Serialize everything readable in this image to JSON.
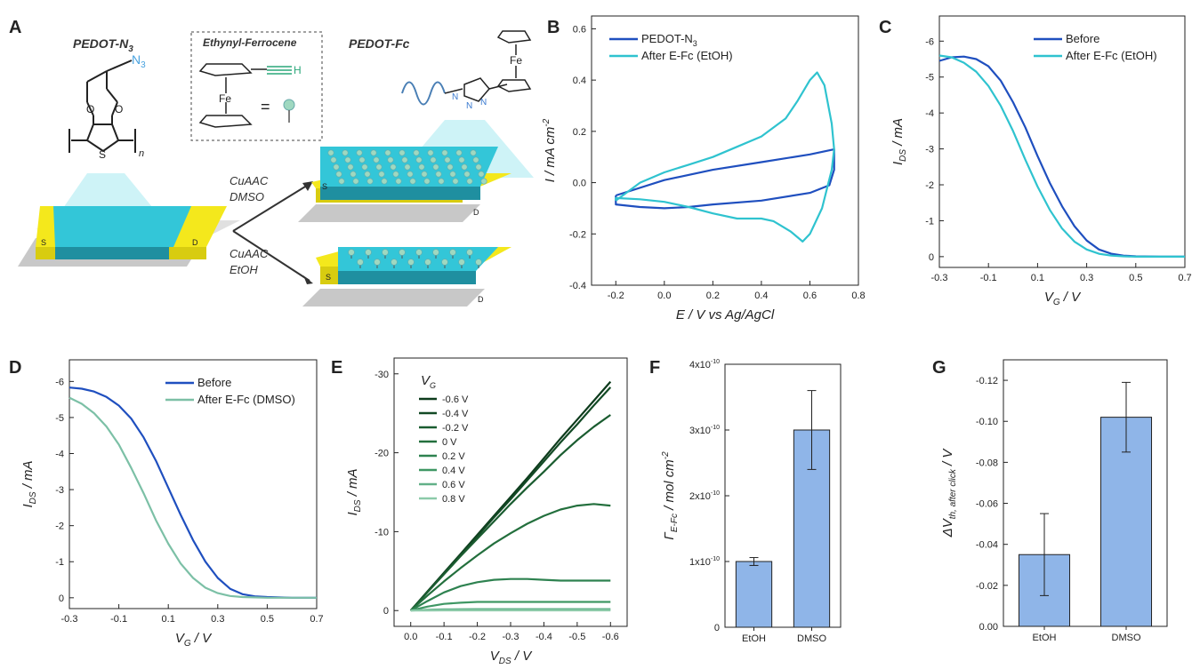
{
  "schematic": {
    "letter": "A",
    "left_title": "PEDOT-N",
    "left_title_sub": "3",
    "right_title": "PEDOT-Fc",
    "box_title": "Ethynyl-Ferrocene",
    "azide": "N",
    "azide_sub": "3",
    "sulfur": "S",
    "iron": "Fe",
    "equals": "=",
    "alkyne_h": "H",
    "n_sub": "n",
    "route_top": [
      "CuAAC",
      "DMSO"
    ],
    "route_bottom": [
      "CuAAC",
      "EtOH"
    ],
    "source": "S",
    "drain": "D",
    "colors": {
      "film": "#33c6d8",
      "contact": "#f4e81c",
      "substrate": "#c8c8c8",
      "fc_ball": "#9fd8c0"
    }
  },
  "colors": {
    "dark_blue": "#1f4fbf",
    "cyan": "#2fc3cf",
    "teal_light": "#7cc0a6",
    "bar_fill": "#8fb5e8"
  },
  "chart_data": [
    {
      "id": "B",
      "type": "line",
      "xlabel": "E / V vs Ag/AgCl",
      "ylabel": "I / mA cm",
      "ylabel_sup": "-2",
      "xlim": [
        -0.3,
        0.8
      ],
      "ylim": [
        -0.4,
        0.65
      ],
      "xticks": [
        -0.2,
        0.0,
        0.2,
        0.4,
        0.6,
        0.8
      ],
      "xtick_labels": [
        "-0.2",
        "0.0",
        "0.2",
        "0.4",
        "0.6",
        "0.8"
      ],
      "yticks": [
        -0.4,
        -0.2,
        0.0,
        0.2,
        0.4,
        0.6
      ],
      "ytick_labels": [
        "-0.4",
        "-0.2",
        "0.0",
        "0.2",
        "0.4",
        "0.6"
      ],
      "legend_pos": "top-left",
      "series": [
        {
          "name": "PEDOT-N",
          "name_sub": "3",
          "color": "#1f4fbf",
          "x": [
            -0.2,
            0.0,
            0.2,
            0.4,
            0.6,
            0.7,
            0.7,
            0.68,
            0.6,
            0.4,
            0.2,
            0.1,
            0.0,
            -0.1,
            -0.2,
            -0.2
          ],
          "y": [
            -0.05,
            0.01,
            0.05,
            0.08,
            0.11,
            0.13,
            0.05,
            -0.01,
            -0.04,
            -0.07,
            -0.085,
            -0.095,
            -0.1,
            -0.095,
            -0.085,
            -0.05
          ]
        },
        {
          "name": "After E-Fc (EtOH)",
          "color": "#2fc3cf",
          "x": [
            -0.2,
            -0.1,
            0.0,
            0.1,
            0.2,
            0.3,
            0.4,
            0.5,
            0.55,
            0.6,
            0.63,
            0.66,
            0.69,
            0.7,
            0.69,
            0.65,
            0.6,
            0.57,
            0.52,
            0.45,
            0.4,
            0.3,
            0.2,
            0.1,
            0.0,
            -0.1,
            -0.2,
            -0.2
          ],
          "y": [
            -0.07,
            0.0,
            0.04,
            0.07,
            0.1,
            0.14,
            0.18,
            0.25,
            0.32,
            0.4,
            0.43,
            0.38,
            0.23,
            0.13,
            0.05,
            -0.1,
            -0.2,
            -0.23,
            -0.19,
            -0.15,
            -0.14,
            -0.14,
            -0.12,
            -0.095,
            -0.075,
            -0.065,
            -0.06,
            -0.07
          ]
        }
      ]
    },
    {
      "id": "C",
      "type": "line",
      "xlabel": "V",
      "xlabel_sub": "G",
      "xlabel_tail": " / V",
      "ylabel": "I",
      "ylabel_sub": "DS",
      "ylabel_tail": " / mA",
      "xlim": [
        -0.3,
        0.7
      ],
      "ylim": [
        0.3,
        -6.7
      ],
      "xticks": [
        -0.3,
        -0.1,
        0.1,
        0.3,
        0.5,
        0.7
      ],
      "xtick_labels": [
        "-0.3",
        "-0.1",
        "0.1",
        "0.3",
        "0.5",
        "0.7"
      ],
      "yticks": [
        0,
        -1,
        -2,
        -3,
        -4,
        -5,
        -6
      ],
      "ytick_labels": [
        "0",
        "-1",
        "-2",
        "-3",
        "-4",
        "-5",
        "-6"
      ],
      "legend_pos": "top-right",
      "series": [
        {
          "name": "Before",
          "color": "#1f4fbf",
          "x": [
            -0.3,
            -0.25,
            -0.2,
            -0.15,
            -0.1,
            -0.05,
            0.0,
            0.05,
            0.1,
            0.15,
            0.2,
            0.25,
            0.3,
            0.35,
            0.4,
            0.45,
            0.5,
            0.6,
            0.7
          ],
          "y": [
            -5.45,
            -5.55,
            -5.57,
            -5.5,
            -5.3,
            -4.9,
            -4.3,
            -3.6,
            -2.8,
            -2.05,
            -1.4,
            -0.85,
            -0.45,
            -0.2,
            -0.08,
            -0.03,
            -0.01,
            0.0,
            0.0
          ]
        },
        {
          "name": "After E-Fc (EtOH)",
          "color": "#2fc3cf",
          "x": [
            -0.3,
            -0.25,
            -0.2,
            -0.15,
            -0.1,
            -0.05,
            0.0,
            0.05,
            0.1,
            0.15,
            0.2,
            0.25,
            0.3,
            0.35,
            0.4,
            0.45,
            0.5,
            0.6,
            0.7
          ],
          "y": [
            -5.6,
            -5.55,
            -5.4,
            -5.15,
            -4.75,
            -4.2,
            -3.5,
            -2.7,
            -1.95,
            -1.3,
            -0.78,
            -0.42,
            -0.2,
            -0.08,
            -0.03,
            -0.01,
            0.0,
            0.0,
            0.0
          ]
        }
      ]
    },
    {
      "id": "D",
      "type": "line",
      "xlabel": "V",
      "xlabel_sub": "G",
      "xlabel_tail": " / V",
      "ylabel": "I",
      "ylabel_sub": "DS",
      "ylabel_tail": " / mA",
      "xlim": [
        -0.3,
        0.7
      ],
      "ylim": [
        0.3,
        -6.6
      ],
      "xticks": [
        -0.3,
        -0.1,
        0.1,
        0.3,
        0.5,
        0.7
      ],
      "xtick_labels": [
        "-0.3",
        "-0.1",
        "0.1",
        "0.3",
        "0.5",
        "0.7"
      ],
      "yticks": [
        0,
        -1,
        -2,
        -3,
        -4,
        -5,
        -6
      ],
      "ytick_labels": [
        "0",
        "-1",
        "-2",
        "-3",
        "-4",
        "-5",
        "-6"
      ],
      "legend_pos": "top-right",
      "series": [
        {
          "name": "Before",
          "color": "#1f4fbf",
          "x": [
            -0.3,
            -0.25,
            -0.2,
            -0.15,
            -0.1,
            -0.05,
            0.0,
            0.05,
            0.1,
            0.15,
            0.2,
            0.25,
            0.3,
            0.35,
            0.4,
            0.45,
            0.5,
            0.6,
            0.7
          ],
          "y": [
            -5.83,
            -5.8,
            -5.72,
            -5.57,
            -5.33,
            -4.97,
            -4.45,
            -3.8,
            -3.05,
            -2.3,
            -1.6,
            -1.0,
            -0.55,
            -0.25,
            -0.1,
            -0.04,
            -0.02,
            0.0,
            0.0
          ]
        },
        {
          "name": "After E-Fc (DMSO)",
          "color": "#7cc0a6",
          "x": [
            -0.3,
            -0.25,
            -0.2,
            -0.15,
            -0.1,
            -0.05,
            0.0,
            0.05,
            0.1,
            0.15,
            0.2,
            0.25,
            0.3,
            0.35,
            0.4,
            0.45,
            0.5,
            0.6,
            0.7
          ],
          "y": [
            -5.55,
            -5.38,
            -5.12,
            -4.75,
            -4.25,
            -3.6,
            -2.9,
            -2.15,
            -1.5,
            -0.95,
            -0.55,
            -0.28,
            -0.13,
            -0.05,
            -0.02,
            -0.01,
            0.0,
            0.0,
            0.0
          ]
        }
      ]
    },
    {
      "id": "E",
      "type": "line",
      "xlabel": "V",
      "xlabel_sub": "DS",
      "xlabel_tail": " / V",
      "ylabel": "I",
      "ylabel_sub": "DS",
      "ylabel_tail": " / mA",
      "xlim": [
        0.05,
        -0.65
      ],
      "ylim": [
        2,
        -32
      ],
      "xticks": [
        0.0,
        -0.1,
        -0.2,
        -0.3,
        -0.4,
        -0.5,
        -0.6
      ],
      "xtick_labels": [
        "0.0",
        "-0.1",
        "-0.2",
        "-0.3",
        "-0.4",
        "-0.5",
        "-0.6"
      ],
      "yticks": [
        0,
        -10,
        -20,
        -30
      ],
      "ytick_labels": [
        "0",
        "-10",
        "-20",
        "-30"
      ],
      "legend_title": "V",
      "legend_title_sub": "G",
      "legend_pos": "top-left",
      "x": [
        0.0,
        -0.05,
        -0.1,
        -0.15,
        -0.2,
        -0.25,
        -0.3,
        -0.35,
        -0.4,
        -0.45,
        -0.5,
        -0.55,
        -0.6
      ],
      "series": [
        {
          "name": "-0.6 V",
          "color": "#0d3b1c",
          "values": [
            0,
            -2.4,
            -4.8,
            -7.2,
            -9.6,
            -12.0,
            -14.4,
            -16.8,
            -19.3,
            -21.8,
            -24.2,
            -26.6,
            -29.0
          ]
        },
        {
          "name": "-0.4 V",
          "color": "#124a25",
          "values": [
            0,
            -2.35,
            -4.7,
            -7.1,
            -9.4,
            -11.8,
            -14.1,
            -16.5,
            -18.9,
            -21.3,
            -23.6,
            -26.0,
            -28.3
          ]
        },
        {
          "name": "-0.2 V",
          "color": "#1a5c30",
          "values": [
            0,
            -2.3,
            -4.6,
            -6.9,
            -9.1,
            -11.3,
            -13.5,
            -15.6,
            -17.6,
            -19.7,
            -21.6,
            -23.3,
            -24.8
          ]
        },
        {
          "name": "0 V",
          "color": "#236f3d",
          "values": [
            0,
            -1.9,
            -3.7,
            -5.4,
            -7.0,
            -8.5,
            -9.8,
            -11.0,
            -12.0,
            -12.8,
            -13.3,
            -13.5,
            -13.3
          ]
        },
        {
          "name": "0.2 V",
          "color": "#2e8250",
          "values": [
            0,
            -1.2,
            -2.3,
            -3.1,
            -3.6,
            -3.9,
            -4.0,
            -4.0,
            -3.9,
            -3.8,
            -3.8,
            -3.8,
            -3.8
          ]
        },
        {
          "name": "0.4 V",
          "color": "#3f9764",
          "values": [
            0,
            -0.5,
            -0.85,
            -1.0,
            -1.1,
            -1.1,
            -1.1,
            -1.1,
            -1.1,
            -1.1,
            -1.1,
            -1.1,
            -1.1
          ]
        },
        {
          "name": "0.6 V",
          "color": "#62b088",
          "values": [
            0,
            -0.1,
            -0.15,
            -0.17,
            -0.18,
            -0.18,
            -0.18,
            -0.18,
            -0.18,
            -0.18,
            -0.18,
            -0.18,
            -0.18
          ]
        },
        {
          "name": "0.8 V",
          "color": "#8ccaa9",
          "values": [
            0,
            -0.02,
            -0.03,
            -0.03,
            -0.03,
            -0.03,
            -0.03,
            -0.03,
            -0.03,
            -0.03,
            -0.03,
            -0.03,
            -0.03
          ]
        }
      ]
    },
    {
      "id": "F",
      "type": "bar",
      "ylabel": "Γ",
      "ylabel_sub": "E-Fc",
      "ylabel_tail": " / mol cm",
      "ylabel_sup": "-2",
      "categories": [
        "EtOH",
        "DMSO"
      ],
      "values": [
        1e-10,
        3e-10
      ],
      "errors": [
        6e-12,
        6e-11
      ],
      "ylim": [
        0,
        4e-10
      ],
      "yticks": [
        0,
        1e-10,
        2e-10,
        3e-10,
        4e-10
      ],
      "ytick_mantissa": [
        "0",
        "1x10",
        "2x10",
        "3x10",
        "4x10"
      ],
      "ytick_exp": [
        "",
        "-10",
        "-10",
        "-10",
        "-10"
      ],
      "color": "#8fb5e8"
    },
    {
      "id": "G",
      "type": "bar",
      "ylabel": "ΔV",
      "ylabel_sub": "th, after click",
      "ylabel_tail": " / V",
      "categories": [
        "EtOH",
        "DMSO"
      ],
      "values": [
        -0.035,
        -0.102
      ],
      "errors": [
        0.02,
        0.017
      ],
      "ylim": [
        0,
        -0.13
      ],
      "yticks": [
        0,
        -0.02,
        -0.04,
        -0.06,
        -0.08,
        -0.1,
        -0.12
      ],
      "ytick_labels": [
        "0.00",
        "-0.02",
        "-0.04",
        "-0.06",
        "-0.08",
        "-0.10",
        "-0.12"
      ],
      "color": "#8fb5e8"
    }
  ]
}
